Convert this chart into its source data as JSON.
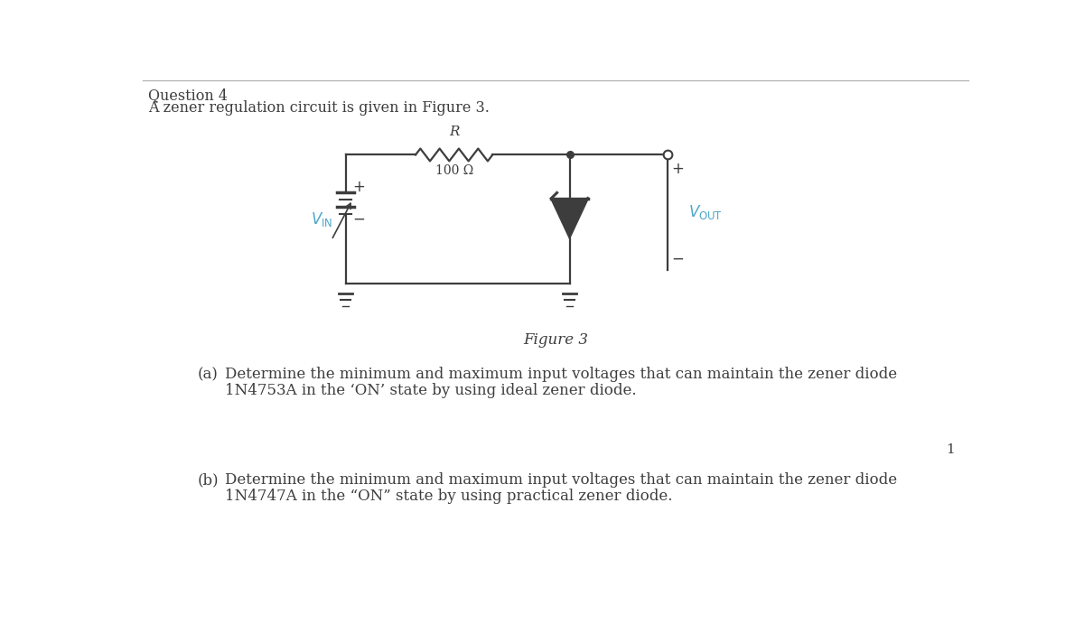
{
  "title": "Question 4",
  "subtitle": "A zener regulation circuit is given in Figure 3.",
  "figure_caption": "Figure 3",
  "part_a_label": "(a)",
  "part_a_text1": "Determine the minimum and maximum input voltages that can maintain the zener diode",
  "part_a_text2": "1N4753A in the ‘ON’ state by using ideal zener diode.",
  "part_b_label": "(b)",
  "part_b_text1": "Determine the minimum and maximum input voltages that can maintain the zener diode",
  "part_b_text2": "1N4747A in the “ON” state by using practical zener diode.",
  "page_number": "1",
  "resistor_label": "R",
  "resistor_value": "100 Ω",
  "bg_color": "#ffffff",
  "text_color": "#3d3d3d",
  "line_color": "#3d3d3d"
}
